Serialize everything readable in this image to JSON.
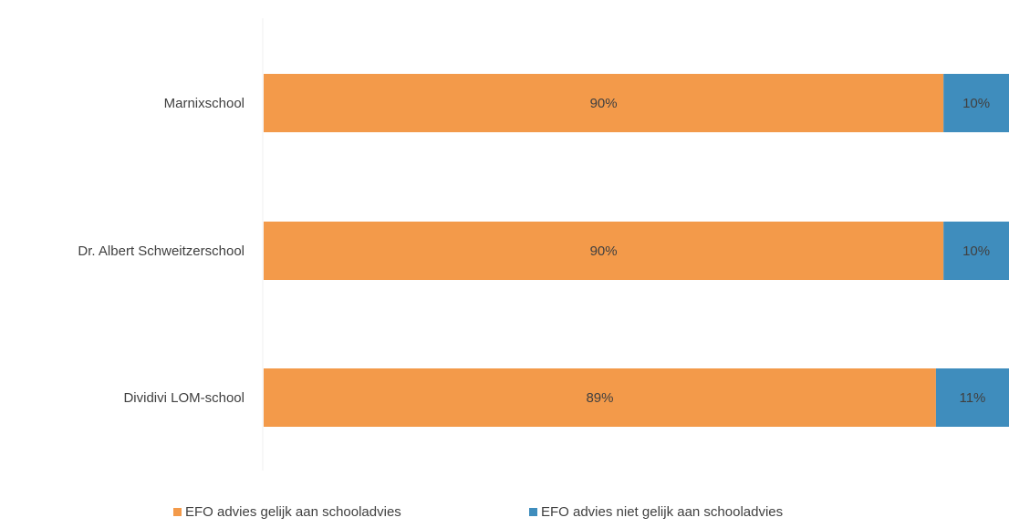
{
  "chart_data": {
    "type": "bar",
    "orientation": "horizontal",
    "stacked": true,
    "categories": [
      "Marnixschool",
      "Dr. Albert Schweitzerschool",
      "Dividivi LOM-school"
    ],
    "series": [
      {
        "name": "EFO advies gelijk aan schooladvies",
        "values": [
          90,
          90,
          89
        ],
        "labels": [
          "90%",
          "90%",
          "89%"
        ],
        "color": "#f39a4a"
      },
      {
        "name": "EFO advies niet gelijk aan schooladvies",
        "values": [
          10,
          10,
          11
        ],
        "labels": [
          "10%",
          "10%",
          "11%"
        ],
        "color": "#3f8dbd"
      }
    ],
    "xlim": [
      0,
      100
    ],
    "grid": false,
    "legend": "bottom"
  }
}
